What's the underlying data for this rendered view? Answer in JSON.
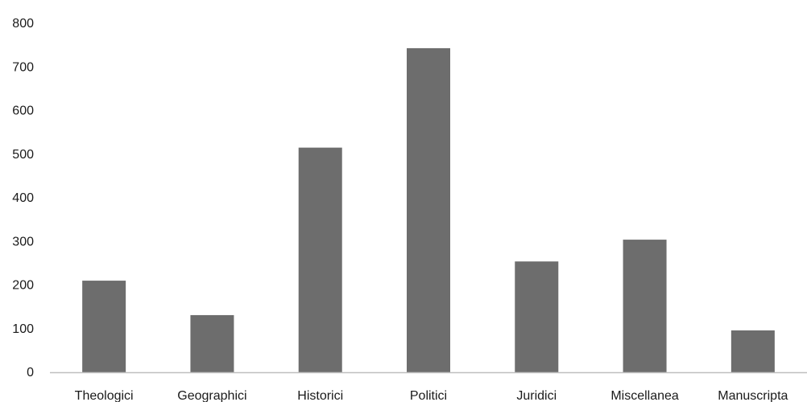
{
  "chart_data": {
    "type": "bar",
    "categories": [
      "Theologici",
      "Geographici",
      "Historici",
      "Politici",
      "Juridici",
      "Miscellanea",
      "Manuscripta"
    ],
    "values": [
      210,
      131,
      515,
      743,
      254,
      304,
      96
    ],
    "ylim": [
      0,
      800
    ],
    "yticks": [
      0,
      100,
      200,
      300,
      400,
      500,
      600,
      700,
      800
    ],
    "grid": false,
    "colors": {
      "bar": "#6d6d6d",
      "axis": "#bfbfbf"
    }
  }
}
